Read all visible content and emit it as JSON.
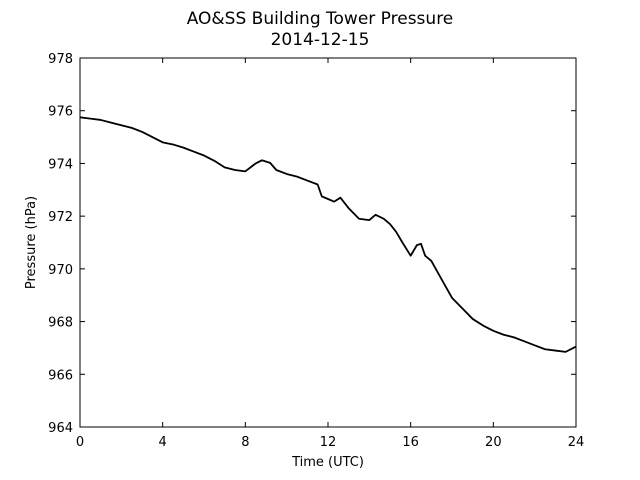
{
  "chart_data": {
    "type": "line",
    "title": "AO&SS Building Tower Pressure",
    "subtitle": "2014-12-15",
    "xlabel": "Time (UTC)",
    "ylabel": "Pressure (hPa)",
    "xlim": [
      0,
      24
    ],
    "ylim": [
      964,
      978
    ],
    "xticks": [
      0,
      4,
      8,
      12,
      16,
      20,
      24
    ],
    "yticks": [
      964,
      966,
      968,
      970,
      972,
      974,
      976,
      978
    ],
    "grid": false,
    "line_color": "#000000",
    "series": [
      {
        "x": [
          0,
          0.5,
          1.0,
          1.5,
          2.0,
          2.5,
          3.0,
          3.5,
          4.0,
          4.5,
          5.0,
          5.5,
          6.0,
          6.5,
          7.0,
          7.5,
          8.0,
          8.5,
          8.8,
          9.2,
          9.5,
          10.0,
          10.5,
          11.0,
          11.5,
          11.7,
          12.0,
          12.3,
          12.6,
          13.0,
          13.5,
          14.0,
          14.3,
          14.7,
          15.0,
          15.3,
          15.6,
          16.0,
          16.3,
          16.5,
          16.7,
          17.0,
          17.5,
          18.0,
          18.5,
          19.0,
          19.5,
          20.0,
          20.5,
          21.0,
          21.5,
          22.0,
          22.5,
          23.0,
          23.5,
          24.0
        ],
        "y": [
          975.75,
          975.7,
          975.65,
          975.55,
          975.45,
          975.35,
          975.2,
          975.0,
          974.8,
          974.72,
          974.6,
          974.45,
          974.3,
          974.1,
          973.85,
          973.75,
          973.7,
          974.0,
          974.12,
          974.02,
          973.75,
          973.6,
          973.5,
          973.35,
          973.2,
          972.75,
          972.65,
          972.55,
          972.7,
          972.3,
          971.9,
          971.85,
          972.05,
          971.9,
          971.7,
          971.4,
          971.0,
          970.5,
          970.9,
          970.95,
          970.5,
          970.3,
          969.6,
          968.9,
          968.5,
          968.1,
          967.85,
          967.65,
          967.5,
          967.4,
          967.25,
          967.1,
          966.95,
          966.9,
          966.85,
          967.05
        ]
      }
    ]
  }
}
